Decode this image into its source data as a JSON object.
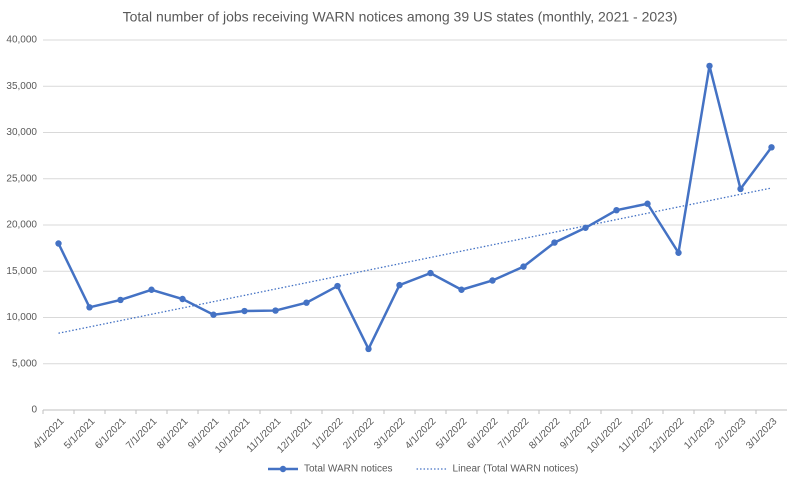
{
  "chart_data": {
    "type": "line",
    "title": "Total number of jobs receiving WARN notices among 39 US states (monthly, 2021 - 2023)",
    "categories": [
      "4/1/2021",
      "5/1/2021",
      "6/1/2021",
      "7/1/2021",
      "8/1/2021",
      "9/1/2021",
      "10/1/2021",
      "11/1/2021",
      "12/1/2021",
      "1/1/2022",
      "2/1/2022",
      "3/1/2022",
      "4/1/2022",
      "5/1/2022",
      "6/1/2022",
      "7/1/2022",
      "8/1/2022",
      "9/1/2022",
      "10/1/2022",
      "11/1/2022",
      "12/1/2022",
      "1/1/2023",
      "2/1/2023",
      "3/1/2023"
    ],
    "series": [
      {
        "name": "Total WARN notices",
        "color": "#4472c4",
        "style": "solid",
        "markers": true,
        "values": [
          18000,
          11100,
          11900,
          13000,
          12000,
          10300,
          10700,
          10750,
          11600,
          13400,
          6600,
          13500,
          14800,
          13000,
          14000,
          15500,
          18100,
          19700,
          21600,
          22300,
          17000,
          37200,
          23900,
          28400
        ]
      },
      {
        "name": "Linear (Total WARN notices)",
        "color": "#4472c4",
        "style": "dotted",
        "markers": false,
        "values": [
          8300,
          8983,
          9665,
          10348,
          11030,
          11713,
          12396,
          13078,
          13761,
          14443,
          15126,
          15809,
          16491,
          17174,
          17857,
          18539,
          19222,
          19904,
          20587,
          21270,
          21952,
          22635,
          23317,
          24000
        ]
      }
    ],
    "ylim": [
      0,
      40000
    ],
    "yticks": [
      0,
      {
        "value": 5000,
        "label": "5,000"
      },
      {
        "value": 10000,
        "label": "10,000"
      },
      {
        "value": 15000,
        "label": "15,000"
      },
      {
        "value": 20000,
        "label": "20,000"
      },
      {
        "value": 25000,
        "label": "25,000"
      },
      {
        "value": 30000,
        "label": "30,000"
      },
      {
        "value": 35000,
        "label": "35,000"
      },
      {
        "value": 40000,
        "label": "40,000"
      }
    ],
    "grid": true,
    "legend": "bottom"
  }
}
